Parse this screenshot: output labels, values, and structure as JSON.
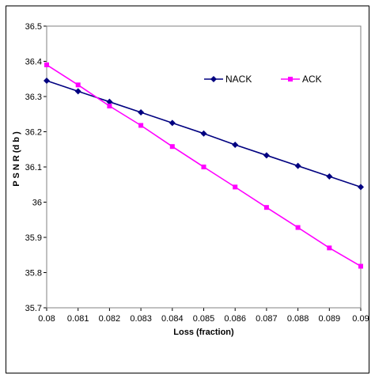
{
  "chart_data": {
    "type": "line",
    "xlabel": "Loss (fraction)",
    "ylabel": "P S N R (d b )",
    "x": [
      0.08,
      0.081,
      0.082,
      0.083,
      0.084,
      0.085,
      0.086,
      0.087,
      0.088,
      0.089,
      0.09
    ],
    "x_tick_labels": [
      "0.08",
      "0.081",
      "0.082",
      "0.083",
      "0.084",
      "0.085",
      "0.086",
      "0.087",
      "0.088",
      "0.089",
      "0.09"
    ],
    "xlim": [
      0.08,
      0.09
    ],
    "ylim": [
      35.7,
      36.5
    ],
    "y_ticks": [
      35.7,
      35.8,
      35.9,
      36,
      36.1,
      36.2,
      36.3,
      36.4,
      36.5
    ],
    "y_tick_labels": [
      "35.7",
      "35.8",
      "35.9",
      "36",
      "36.1",
      "36.2",
      "36.3",
      "36.4",
      "36.5"
    ],
    "grid": false,
    "legend_position": "top-right",
    "series": [
      {
        "name": "NACK",
        "color": "#000080",
        "marker": "diamond",
        "values": [
          36.345,
          36.315,
          36.285,
          36.255,
          36.225,
          36.195,
          36.163,
          36.133,
          36.103,
          36.073,
          36.043
        ]
      },
      {
        "name": "ACK",
        "color": "#ff00ff",
        "marker": "square",
        "values": [
          36.39,
          36.333,
          36.273,
          36.218,
          36.158,
          36.1,
          36.043,
          35.985,
          35.928,
          35.87,
          35.818
        ]
      }
    ]
  }
}
